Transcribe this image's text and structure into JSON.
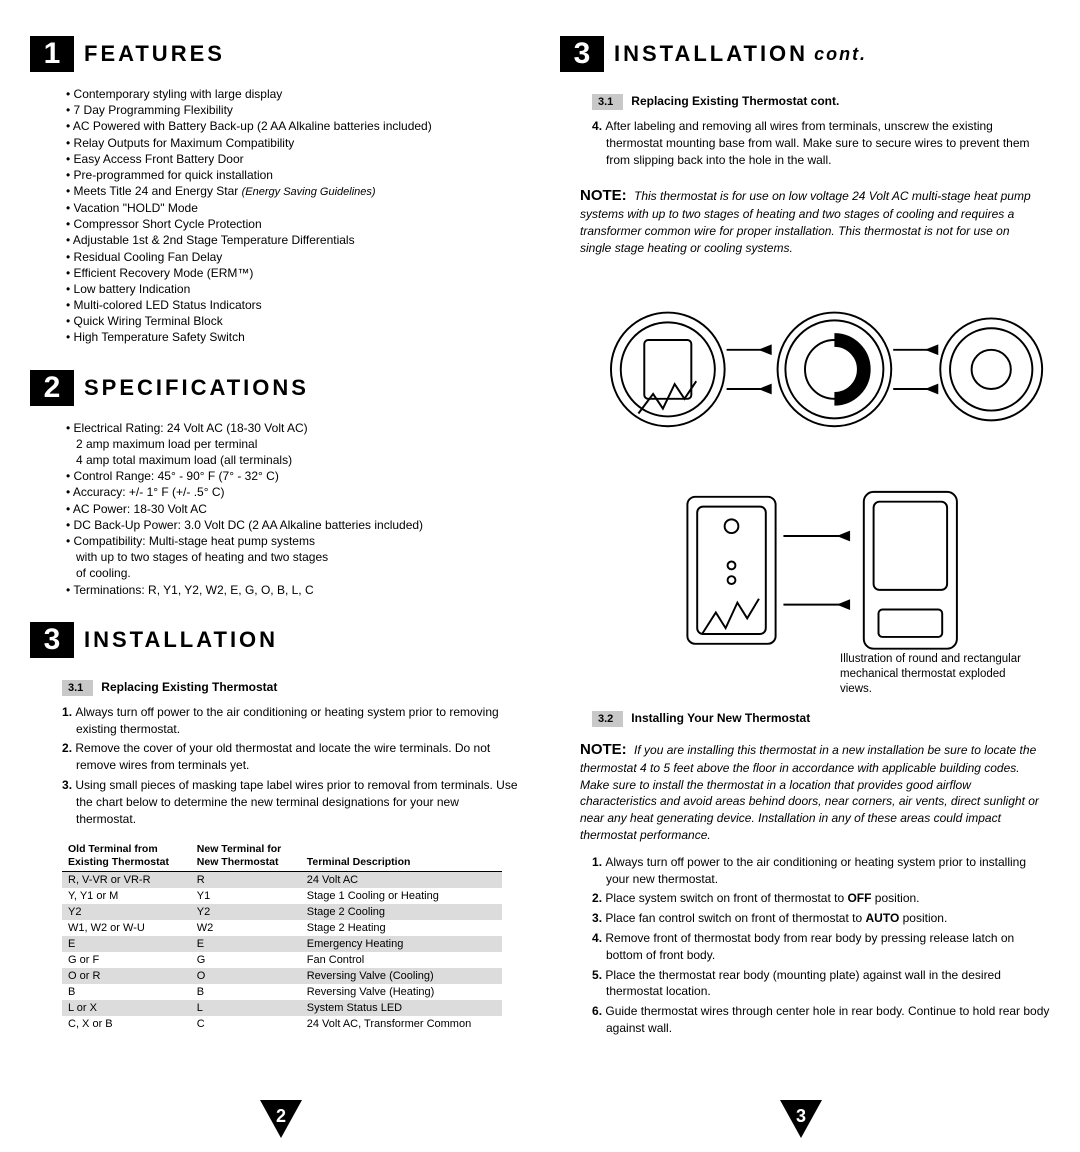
{
  "colors": {
    "bg": "#ffffff",
    "text": "#000000",
    "alt_row": "#dcdcdc",
    "subnum_bg": "#c8c8c8"
  },
  "left": {
    "s1": {
      "num": "1",
      "title": "FEATURES",
      "items": [
        "Contemporary styling with large display",
        "7 Day Programming Flexibility",
        "AC Powered with Battery Back-up (2 AA Alkaline batteries included)",
        "Relay Outputs for Maximum Compatibility",
        "Easy Access Front Battery Door",
        "Pre-programmed for quick installation",
        "Meets Title 24 and Energy Star (Energy Saving Guidelines)",
        "Vacation \"HOLD\" Mode",
        "Compressor Short Cycle Protection",
        "Adjustable 1st & 2nd Stage Temperature Differentials",
        "Residual Cooling Fan Delay",
        "Efficient Recovery Mode (ERM™)",
        "Low battery Indication",
        "Multi-colored LED Status Indicators",
        "Quick Wiring Terminal Block",
        "High Temperature Safety Switch"
      ]
    },
    "s2": {
      "num": "2",
      "title": "SPECIFICATIONS",
      "items": [
        "Electrical Rating:  24 Volt AC (18-30 Volt AC)\n2 amp maximum load per terminal\n4 amp total maximum load (all terminals)",
        "Control Range:  45° - 90° F (7° - 32° C)",
        "Accuracy:   +/- 1° F (+/- .5° C)",
        "AC Power:   18-30 Volt AC",
        "DC Back-Up Power: 3.0 Volt DC (2 AA Alkaline batteries included)",
        "Compatibility: Multi-stage heat pump systems\nwith up to two stages of heating and two stages\nof cooling.",
        "Terminations:  R, Y1, Y2, W2, E, G, O, B, L, C"
      ]
    },
    "s3": {
      "num": "3",
      "title": "INSTALLATION",
      "sub31_num": "3.1",
      "sub31_title": "Replacing Existing Thermostat",
      "steps": [
        "Always turn off power to the air conditioning or heating system prior to removing existing thermostat.",
        "Remove the cover of your old thermostat and locate the wire terminals.  Do not remove wires from terminals yet.",
        "Using small pieces of masking tape label wires prior to removal from terminals.  Use the chart below to determine the new terminal designations for your new thermostat."
      ],
      "table": {
        "headers": [
          "Old Terminal from\nExisting Thermostat",
          "New Terminal for\nNew Thermostat",
          "Terminal Description"
        ],
        "rows": [
          [
            "R, V-VR or VR-R",
            "R",
            "24 Volt AC"
          ],
          [
            "Y, Y1 or M",
            "Y1",
            "Stage 1 Cooling or Heating"
          ],
          [
            "Y2",
            "Y2",
            "Stage 2 Cooling"
          ],
          [
            "W1, W2 or W-U",
            "W2",
            "Stage 2 Heating"
          ],
          [
            "E",
            "E",
            "Emergency Heating"
          ],
          [
            "G or F",
            "G",
            "Fan Control"
          ],
          [
            "O or R",
            "O",
            "Reversing Valve (Cooling)"
          ],
          [
            "B",
            "B",
            "Reversing Valve (Heating)"
          ],
          [
            "L or X",
            "L",
            "System Status LED"
          ],
          [
            "C, X or B",
            "C",
            "24 Volt AC, Transformer Common"
          ]
        ]
      }
    },
    "page_num": "2"
  },
  "right": {
    "s3c": {
      "num": "3",
      "title": "INSTALLATION",
      "suffix": "cont.",
      "sub31_num": "3.1",
      "sub31_title": "Replacing Existing Thermostat cont.",
      "step4": "After labeling and removing all wires from terminals, unscrew the existing thermostat mounting base from wall.  Make sure to secure wires to prevent them from slipping back into the hole in the wall.",
      "note1_label": "NOTE:",
      "note1": "This thermostat is for use on low voltage 24 Volt AC multi-stage heat pump systems with up to two stages of heating and two stages of cooling and requires a transformer common wire for proper installation. This thermostat is not for use on single stage heating or cooling systems.",
      "caption": "Illustration of round and rectangular mechanical thermostat exploded views.",
      "sub32_num": "3.2",
      "sub32_title": "Installing Your New Thermostat",
      "note2_label": "NOTE:",
      "note2": "If you are installing this thermostat in a new installation be sure to locate the thermostat 4 to 5 feet above the floor in accordance with applicable building codes.  Make sure to install the thermostat in a location that provides good airflow characteristics and avoid areas behind doors, near corners, air vents, direct sunlight or near any heat generating device.  Installation in any of these areas could impact thermostat performance.",
      "steps": [
        "Always turn off power to the air conditioning or heating system prior to installing your new thermostat.",
        "Place system switch on front of thermostat to OFF position.",
        "Place fan control switch on front of thermostat to AUTO position.",
        "Remove front of thermostat body from rear body by pressing release latch on bottom of front body.",
        "Place the thermostat rear body (mounting plate) against wall in the desired thermostat location.",
        "Guide thermostat wires through center hole in rear body.  Continue to hold rear body against wall."
      ]
    },
    "page_num": "3"
  }
}
